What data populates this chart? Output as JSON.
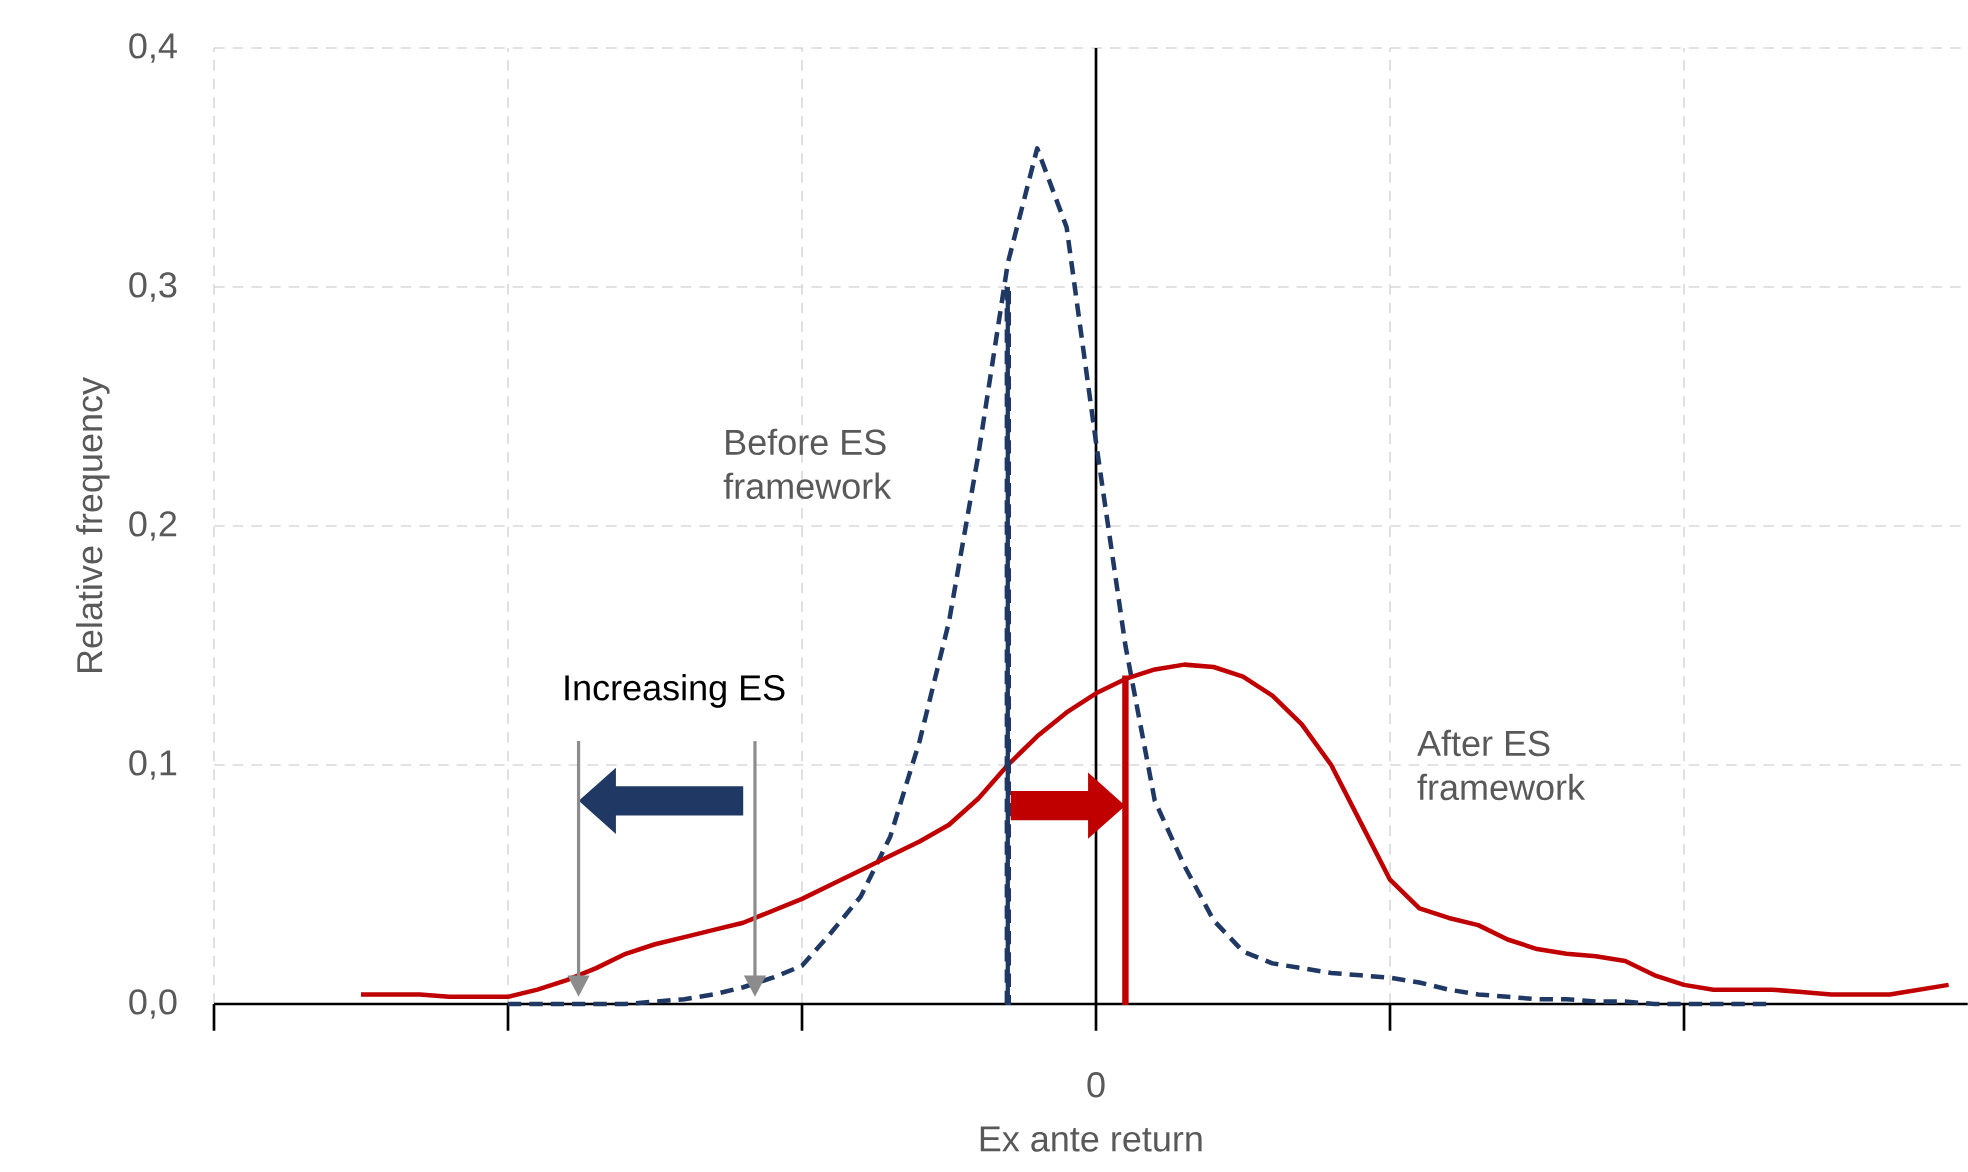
{
  "chart_data": {
    "type": "line",
    "xlabel": "Ex ante return",
    "ylabel": "Relative frequency",
    "categories": [
      null,
      null,
      null,
      null,
      null,
      null,
      null,
      null,
      null,
      null,
      null,
      null,
      null,
      null,
      null,
      null,
      null,
      null,
      null,
      null,
      null,
      null,
      null,
      null,
      null,
      "0",
      null,
      null,
      null,
      null,
      null,
      null,
      null,
      null,
      null,
      null,
      null,
      null,
      null,
      null,
      null,
      null,
      null,
      null,
      null,
      null,
      null,
      null,
      null,
      null,
      null,
      null,
      null,
      null,
      null
    ],
    "series": [
      {
        "name": "Before ES framework",
        "color": "#1f3864",
        "line_style": "dashed",
        "values": [
          null,
          null,
          null,
          null,
          null,
          0,
          0,
          0,
          0,
          0,
          0.001,
          0.002,
          0.004,
          0.007,
          0.011,
          0.016,
          0.03,
          0.045,
          0.07,
          0.11,
          0.16,
          0.23,
          0.31,
          0.358,
          0.325,
          0.235,
          0.15,
          0.085,
          0.058,
          0.035,
          0.022,
          0.017,
          0.015,
          0.013,
          0.012,
          0.011,
          0.009,
          0.006,
          0.004,
          0.003,
          0.002,
          0.002,
          0.001,
          0.001,
          0,
          0,
          0,
          0,
          0,
          null,
          null,
          null,
          null,
          null,
          null
        ]
      },
      {
        "name": "After ES framework",
        "color": "#c00000",
        "line_style": "solid",
        "values": [
          0.004,
          0.004,
          0.004,
          0.003,
          0.003,
          0.003,
          0.006,
          0.01,
          0.015,
          0.021,
          0.025,
          0.028,
          0.031,
          0.034,
          0.039,
          0.044,
          0.05,
          0.056,
          0.062,
          0.068,
          0.075,
          0.086,
          0.1,
          0.112,
          0.122,
          0.13,
          0.136,
          0.14,
          0.142,
          0.141,
          0.137,
          0.129,
          0.117,
          0.1,
          0.076,
          0.052,
          0.04,
          0.036,
          0.033,
          0.027,
          0.023,
          0.021,
          0.02,
          0.018,
          0.012,
          0.008,
          0.006,
          0.006,
          0.006,
          0.005,
          0.004,
          0.004,
          0.004,
          0.006,
          0.008
        ]
      },
      {
        "type": "bar",
        "color": "#1f3864",
        "line_style": "dashed",
        "values": [
          null,
          null,
          null,
          null,
          null,
          null,
          null,
          null,
          null,
          null,
          null,
          null,
          null,
          null,
          null,
          null,
          null,
          null,
          null,
          null,
          null,
          null,
          0.3,
          null,
          null,
          null,
          null,
          null,
          null,
          null,
          null,
          null,
          null,
          null,
          null,
          null,
          null,
          null,
          null,
          null,
          null,
          null,
          null,
          null,
          null,
          null,
          null,
          null,
          null,
          null,
          null,
          null,
          null,
          null,
          null
        ]
      },
      {
        "type": "bar",
        "color": "#c00000",
        "line_style": "solid",
        "values": [
          null,
          null,
          null,
          null,
          null,
          null,
          null,
          null,
          null,
          null,
          null,
          null,
          null,
          null,
          null,
          null,
          null,
          null,
          null,
          null,
          null,
          null,
          null,
          null,
          null,
          null,
          0.137,
          null,
          null,
          null,
          null,
          null,
          null,
          null,
          null,
          null,
          null,
          null,
          null,
          null,
          null,
          null,
          null,
          null,
          null,
          null,
          null,
          null,
          null,
          null,
          null,
          null,
          null,
          null,
          null
        ]
      }
    ],
    "ylim": [
      0,
      0.4
    ],
    "yticks": [
      {
        "value": 0,
        "label": "0,0"
      },
      {
        "value": 0.1,
        "label": "0,1"
      },
      {
        "value": 0.2,
        "label": "0,2"
      },
      {
        "value": 0.3,
        "label": "0,3"
      },
      {
        "value": 0.4,
        "label": "0,4"
      }
    ],
    "ref_lines": [
      {
        "axis": "x",
        "value": "0",
        "color": "#000000"
      }
    ],
    "annotations": [
      "Increasing ES"
    ],
    "grid": true,
    "marker": "none"
  }
}
